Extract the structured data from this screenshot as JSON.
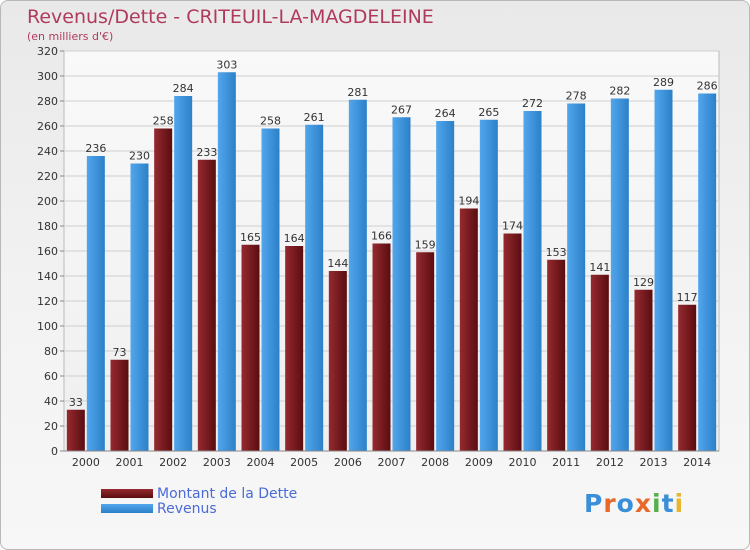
{
  "header": {
    "title": "Revenus/Dette - CRITEUIL-LA-MAGDELEINE",
    "subtitle": "(en milliers d'€)"
  },
  "legend": {
    "items": [
      {
        "label": "Montant de la Dette",
        "color": "#7a1a1e"
      },
      {
        "label": "Revenus",
        "color": "#3b93dc"
      }
    ]
  },
  "logo": {
    "text": "Proxiti",
    "letter_colors": [
      "#3a8fd8",
      "#e8692a",
      "#3a8fd8",
      "#e8692a",
      "#56b04a",
      "#3a8fd8",
      "#e8b530"
    ]
  },
  "chart_data": {
    "type": "bar",
    "title": "Revenus/Dette - CRITEUIL-LA-MAGDELEINE",
    "ylabel": "(en milliers d'€)",
    "xlabel": "",
    "categories": [
      "2000",
      "2001",
      "2002",
      "2003",
      "2004",
      "2005",
      "2006",
      "2007",
      "2008",
      "2009",
      "2010",
      "2011",
      "2012",
      "2013",
      "2014"
    ],
    "series": [
      {
        "name": "Montant de la Dette",
        "color": "#7a1a1e",
        "values": [
          33,
          73,
          258,
          233,
          165,
          164,
          144,
          166,
          159,
          194,
          174,
          153,
          141,
          129,
          117
        ]
      },
      {
        "name": "Revenus",
        "color": "#3b93dc",
        "values": [
          236,
          230,
          284,
          303,
          258,
          261,
          281,
          267,
          264,
          265,
          272,
          278,
          282,
          289,
          286
        ]
      }
    ],
    "ylim": [
      0,
      320
    ],
    "yticks": [
      0,
      20,
      40,
      60,
      80,
      100,
      120,
      140,
      160,
      180,
      200,
      220,
      240,
      260,
      280,
      300,
      320
    ],
    "grid": true,
    "legend_position": "bottom-left"
  }
}
